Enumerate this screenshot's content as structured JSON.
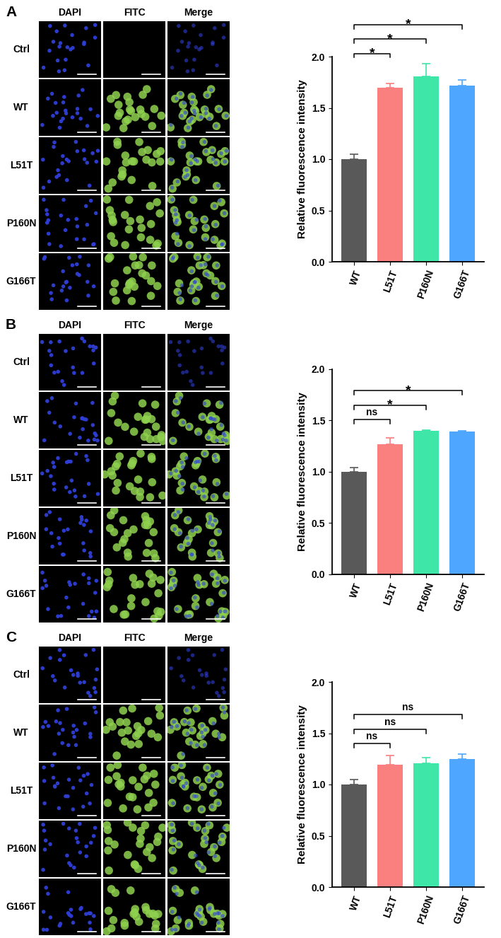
{
  "panel_labels": [
    "A",
    "B",
    "C"
  ],
  "image_columns": [
    "DAPI",
    "FITC",
    "Merge"
  ],
  "image_rows": [
    "Ctrl",
    "WT",
    "L51T",
    "P160N",
    "G166T"
  ],
  "chart_data": [
    {
      "type": "bar",
      "ylabel": "Relative fluorescence intensity",
      "categories": [
        "WT",
        "L51T",
        "P160N",
        "G166T"
      ],
      "values": [
        1.0,
        1.7,
        1.81,
        1.72
      ],
      "errors": [
        0.05,
        0.04,
        0.12,
        0.05
      ],
      "colors": [
        "#595959",
        "#fa7f7f",
        "#3ee6a8",
        "#4fa6ff"
      ],
      "ylim": [
        0,
        2.0
      ],
      "yticks": [
        {
          "value": 0,
          "label": "0.0"
        },
        {
          "value": 0.5,
          "label": "0.5"
        },
        {
          "value": 1.0,
          "label": "1.0"
        },
        {
          "value": 1.5,
          "label": "1.5"
        },
        {
          "value": 2.0,
          "label": "2.0"
        }
      ],
      "annotations": [
        {
          "from": "WT",
          "to": "L51T",
          "text": "*"
        },
        {
          "from": "WT",
          "to": "P160N",
          "text": "*"
        },
        {
          "from": "WT",
          "to": "G166T",
          "text": "*"
        }
      ]
    },
    {
      "type": "bar",
      "ylabel": "Relative fluorescence intensity",
      "categories": [
        "WT",
        "L51T",
        "P160N",
        "G166T"
      ],
      "values": [
        1.0,
        1.27,
        1.4,
        1.39
      ],
      "errors": [
        0.04,
        0.06,
        0.01,
        0.01
      ],
      "colors": [
        "#595959",
        "#fa7f7f",
        "#3ee6a8",
        "#4fa6ff"
      ],
      "ylim": [
        0,
        2.0
      ],
      "yticks": [
        {
          "value": 0,
          "label": "0.0"
        },
        {
          "value": 0.5,
          "label": "0.5"
        },
        {
          "value": 1.0,
          "label": "1.0"
        },
        {
          "value": 1.5,
          "label": "1.5"
        },
        {
          "value": 2.0,
          "label": "2.0"
        }
      ],
      "annotations": [
        {
          "from": "WT",
          "to": "L51T",
          "text": "ns"
        },
        {
          "from": "WT",
          "to": "P160N",
          "text": "*"
        },
        {
          "from": "WT",
          "to": "G166T",
          "text": "*"
        }
      ]
    },
    {
      "type": "bar",
      "ylabel": "Relative fluorescence intensity",
      "categories": [
        "WT",
        "L51T",
        "P160N",
        "G166T"
      ],
      "values": [
        1.0,
        1.19,
        1.21,
        1.25
      ],
      "errors": [
        0.05,
        0.09,
        0.05,
        0.05
      ],
      "colors": [
        "#595959",
        "#fa7f7f",
        "#3ee6a8",
        "#4fa6ff"
      ],
      "ylim": [
        0,
        2.0
      ],
      "yticks": [
        {
          "value": 0,
          "label": "0.0"
        },
        {
          "value": 0.5,
          "label": "0.5"
        },
        {
          "value": 1.0,
          "label": "1.0"
        },
        {
          "value": 1.5,
          "label": "1.5"
        },
        {
          "value": 2.0,
          "label": "2.0"
        }
      ],
      "annotations": [
        {
          "from": "WT",
          "to": "L51T",
          "text": "ns"
        },
        {
          "from": "WT",
          "to": "P160N",
          "text": "ns"
        },
        {
          "from": "WT",
          "to": "G166T",
          "text": "ns"
        }
      ]
    }
  ]
}
